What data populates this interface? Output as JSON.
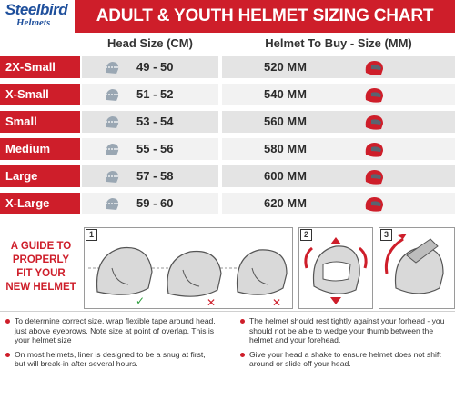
{
  "brand": {
    "name": "Steelbird",
    "sub": "Helmets"
  },
  "title": "ADULT & YOUTH HELMET SIZING CHART",
  "columns": {
    "head": "Head Size (CM)",
    "helmet": "Helmet To Buy - Size (MM)"
  },
  "rows": [
    {
      "label": "2X-Small",
      "head": "49 - 50",
      "helmet": "520 MM"
    },
    {
      "label": "X-Small",
      "head": "51 - 52",
      "helmet": "540 MM"
    },
    {
      "label": "Small",
      "head": "53 - 54",
      "helmet": "560 MM"
    },
    {
      "label": "Medium",
      "head": "55 - 56",
      "helmet": "580 MM"
    },
    {
      "label": "Large",
      "head": "57 - 58",
      "helmet": "600 MM"
    },
    {
      "label": "X-Large",
      "head": "59 - 60",
      "helmet": "620 MM"
    }
  ],
  "guide": {
    "lines": [
      "A GUIDE TO",
      "PROPERLY",
      "FIT YOUR",
      "NEW HELMET"
    ]
  },
  "panels": [
    {
      "num": "1"
    },
    {
      "num": "2"
    },
    {
      "num": "3"
    }
  ],
  "tips_left": [
    "To determine correct size, wrap flexible tape around head, just above eyebrows. Note size at point of overlap. This is your helmet size",
    "On most helmets, liner is designed to be a snug at first, but will break-in after several hours."
  ],
  "tips_right": [
    "The helmet should rest tightly against your forhead - you should not be able to wedge your thumb between the helmet and your forehead.",
    "Give your head a shake to ensure helmet does not shift around or slide off your head."
  ],
  "colors": {
    "accent": "#ce1e2a",
    "brand": "#1e4f9c"
  }
}
